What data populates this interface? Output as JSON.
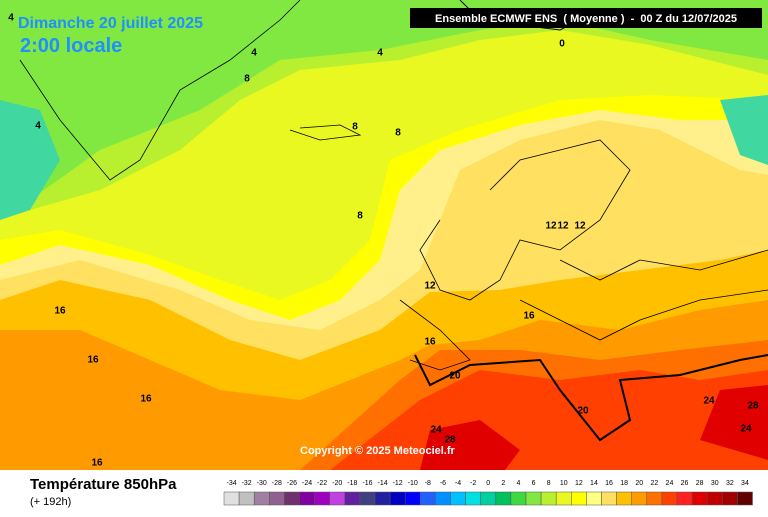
{
  "header": {
    "title": "Dimanche 20 juillet 2025",
    "time": "2:00 locale",
    "model": "Ensemble ECMWF ENS  ( Moyenne )  -  00 Z du 12/07/2025",
    "copyright": "Copyright © 2025 Meteociel.fr"
  },
  "footer": {
    "variable": "Température 850hPa",
    "lead": "(+ 192h)"
  },
  "legend": {
    "values": [
      -34,
      -32,
      -30,
      -28,
      -26,
      -24,
      -22,
      -20,
      -18,
      -16,
      -14,
      -12,
      -10,
      -8,
      -6,
      -4,
      -2,
      0,
      2,
      4,
      6,
      8,
      10,
      12,
      14,
      16,
      18,
      20,
      22,
      24,
      26,
      28,
      30,
      32,
      34
    ],
    "colors": [
      "#e0e0e0",
      "#c0c0c0",
      "#a080a0",
      "#906090",
      "#703070",
      "#8000a0",
      "#a000c0",
      "#c040e0",
      "#6020a0",
      "#404080",
      "#2020a0",
      "#0000c0",
      "#0000ff",
      "#2060ff",
      "#0090ff",
      "#00c0ff",
      "#00e0e0",
      "#00d0a0",
      "#00c060",
      "#40d840",
      "#80e840",
      "#b8f030",
      "#e8f820",
      "#ffff00",
      "#ffff80",
      "#ffe060",
      "#ffc000",
      "#ff9a00",
      "#ff7000",
      "#ff4000",
      "#ff2020",
      "#e00000",
      "#c00000",
      "#a00000",
      "#600000"
    ]
  },
  "contour_labels": [
    4,
    4,
    4,
    0,
    8,
    4,
    8,
    8,
    8,
    12,
    12,
    12,
    12,
    16,
    16,
    16,
    16,
    16,
    16,
    20,
    20,
    24,
    28,
    24,
    24,
    28
  ]
}
